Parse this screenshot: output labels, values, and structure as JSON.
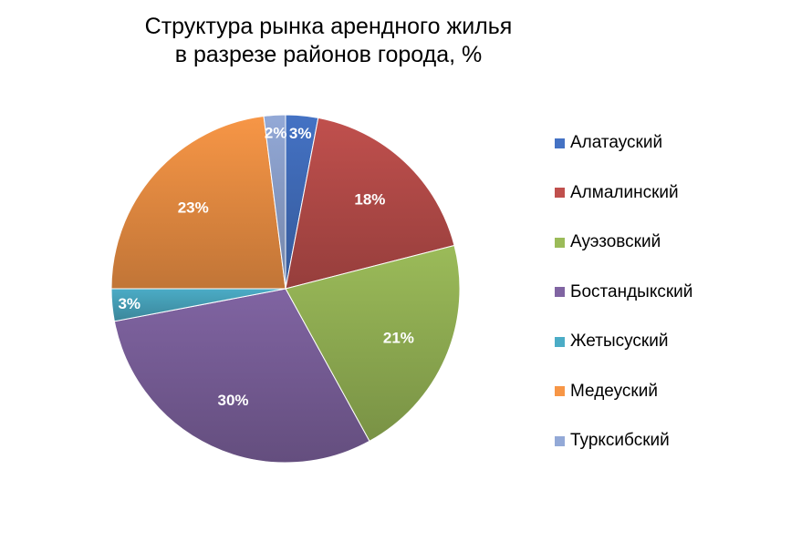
{
  "chart_data": {
    "type": "pie",
    "title": [
      "Структура рынка арендного жилья",
      "в разрезе районов города, %"
    ],
    "legend_position": "right",
    "slices": [
      {
        "name": "Алатауский",
        "value": 3,
        "label": "3%",
        "color": "#4472C4"
      },
      {
        "name": "Алмалинский",
        "value": 18,
        "label": "18%",
        "color": "#C0504D"
      },
      {
        "name": "Ауэзовский",
        "value": 21,
        "label": "21%",
        "color": "#9BBB59"
      },
      {
        "name": "Бостандыкский",
        "value": 30,
        "label": "30%",
        "color": "#8064A2"
      },
      {
        "name": "Жетысуский",
        "value": 3,
        "label": "3%",
        "color": "#4BACC6"
      },
      {
        "name": "Медеуский",
        "value": 23,
        "label": "23%",
        "color": "#F79646"
      },
      {
        "name": "Турксибский",
        "value": 2,
        "label": "2%",
        "color": "#93A9D7"
      }
    ]
  }
}
